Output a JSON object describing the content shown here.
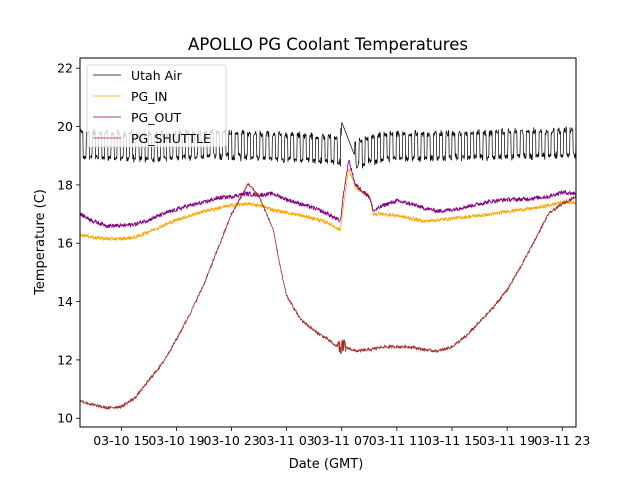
{
  "chart_data": {
    "type": "line",
    "title": "APOLLO PG Coolant Temperatures",
    "xlabel": "Date (GMT)",
    "ylabel": "Temperature (C)",
    "x_unit": "hours since 03-10 12:00 GMT",
    "xlim": [
      0,
      36
    ],
    "ylim": [
      9.7,
      22.35
    ],
    "grid": false,
    "legend_position": "top-left",
    "xticks": [
      {
        "x": 3,
        "label": "03-10 15"
      },
      {
        "x": 7,
        "label": "03-10 19"
      },
      {
        "x": 11,
        "label": "03-10 23"
      },
      {
        "x": 15,
        "label": "03-11 03"
      },
      {
        "x": 19,
        "label": "03-11 07"
      },
      {
        "x": 23,
        "label": "03-11 11"
      },
      {
        "x": 27,
        "label": "03-11 15"
      },
      {
        "x": 31,
        "label": "03-11 19"
      },
      {
        "x": 35,
        "label": "03-11 23"
      }
    ],
    "yticks": [
      10,
      12,
      14,
      16,
      18,
      20,
      22
    ],
    "series": [
      {
        "name": "Utah Air",
        "color": "#000000",
        "oscillation": {
          "low": 18.9,
          "high": 19.9,
          "period_hours": 0.45
        },
        "points": [
          [
            0,
            19.4
          ],
          [
            5,
            19.3
          ],
          [
            10,
            19.4
          ],
          [
            15,
            19.3
          ],
          [
            18.9,
            19.2
          ],
          [
            19.0,
            20.15
          ],
          [
            19.9,
            19.05
          ],
          [
            22,
            19.3
          ],
          [
            27,
            19.35
          ],
          [
            32,
            19.4
          ],
          [
            36,
            19.45
          ]
        ]
      },
      {
        "name": "PG_IN",
        "color": "#ffa500",
        "points": [
          [
            0,
            16.3
          ],
          [
            1,
            16.2
          ],
          [
            2,
            16.15
          ],
          [
            3,
            16.15
          ],
          [
            4,
            16.2
          ],
          [
            5,
            16.4
          ],
          [
            6,
            16.6
          ],
          [
            7,
            16.8
          ],
          [
            8,
            16.95
          ],
          [
            9,
            17.1
          ],
          [
            10,
            17.2
          ],
          [
            11,
            17.3
          ],
          [
            12,
            17.35
          ],
          [
            13,
            17.3
          ],
          [
            14,
            17.15
          ],
          [
            15,
            17.05
          ],
          [
            16,
            16.95
          ],
          [
            17,
            16.85
          ],
          [
            18,
            16.7
          ],
          [
            18.9,
            16.45
          ],
          [
            19.1,
            17.2
          ],
          [
            19.5,
            18.55
          ],
          [
            20,
            17.9
          ],
          [
            21,
            17.6
          ],
          [
            21.3,
            17.0
          ],
          [
            22,
            17.0
          ],
          [
            23,
            16.95
          ],
          [
            24,
            16.85
          ],
          [
            25,
            16.75
          ],
          [
            26,
            16.8
          ],
          [
            27,
            16.85
          ],
          [
            28,
            16.9
          ],
          [
            29,
            16.95
          ],
          [
            30,
            17.0
          ],
          [
            31,
            17.1
          ],
          [
            32,
            17.15
          ],
          [
            33,
            17.2
          ],
          [
            34,
            17.3
          ],
          [
            35,
            17.4
          ],
          [
            36,
            17.4
          ]
        ]
      },
      {
        "name": "PG_OUT",
        "color": "#800080",
        "points": [
          [
            0,
            17.0
          ],
          [
            1,
            16.75
          ],
          [
            2,
            16.6
          ],
          [
            3,
            16.6
          ],
          [
            4,
            16.65
          ],
          [
            5,
            16.8
          ],
          [
            6,
            17.0
          ],
          [
            7,
            17.15
          ],
          [
            8,
            17.3
          ],
          [
            9,
            17.4
          ],
          [
            10,
            17.55
          ],
          [
            11,
            17.6
          ],
          [
            12,
            17.7
          ],
          [
            13,
            17.65
          ],
          [
            14,
            17.7
          ],
          [
            15,
            17.5
          ],
          [
            16,
            17.35
          ],
          [
            17,
            17.2
          ],
          [
            18,
            17.0
          ],
          [
            18.9,
            16.75
          ],
          [
            19.1,
            17.6
          ],
          [
            19.5,
            18.85
          ],
          [
            20,
            18.0
          ],
          [
            21,
            17.6
          ],
          [
            21.3,
            17.1
          ],
          [
            22,
            17.3
          ],
          [
            23,
            17.45
          ],
          [
            24,
            17.35
          ],
          [
            25,
            17.2
          ],
          [
            26,
            17.1
          ],
          [
            27,
            17.15
          ],
          [
            28,
            17.25
          ],
          [
            29,
            17.35
          ],
          [
            30,
            17.45
          ],
          [
            31,
            17.5
          ],
          [
            32,
            17.5
          ],
          [
            33,
            17.55
          ],
          [
            34,
            17.6
          ],
          [
            35,
            17.75
          ],
          [
            36,
            17.7
          ]
        ]
      },
      {
        "name": "PG_SHUTTLE",
        "color": "#a52a2a",
        "points": [
          [
            0,
            10.6
          ],
          [
            1,
            10.45
          ],
          [
            2,
            10.35
          ],
          [
            3,
            10.4
          ],
          [
            4,
            10.7
          ],
          [
            5,
            11.3
          ],
          [
            6,
            11.9
          ],
          [
            7,
            12.7
          ],
          [
            8,
            13.6
          ],
          [
            9,
            14.6
          ],
          [
            10,
            15.8
          ],
          [
            11,
            17.0
          ],
          [
            12,
            17.85
          ],
          [
            12.2,
            18.05
          ],
          [
            13,
            17.6
          ],
          [
            14,
            16.5
          ],
          [
            14.7,
            14.8
          ],
          [
            15,
            14.2
          ],
          [
            16,
            13.4
          ],
          [
            17,
            13.0
          ],
          [
            18,
            12.7
          ],
          [
            18.5,
            12.5
          ],
          [
            19,
            12.45
          ],
          [
            19.5,
            12.4
          ],
          [
            20,
            12.3
          ],
          [
            21,
            12.35
          ],
          [
            22,
            12.45
          ],
          [
            23,
            12.45
          ],
          [
            24,
            12.45
          ],
          [
            25,
            12.35
          ],
          [
            26,
            12.3
          ],
          [
            27,
            12.45
          ],
          [
            28,
            12.8
          ],
          [
            29,
            13.3
          ],
          [
            30,
            13.8
          ],
          [
            31,
            14.4
          ],
          [
            32,
            15.2
          ],
          [
            33,
            16.1
          ],
          [
            34,
            17.0
          ],
          [
            35,
            17.35
          ],
          [
            36,
            17.6
          ]
        ]
      }
    ]
  }
}
